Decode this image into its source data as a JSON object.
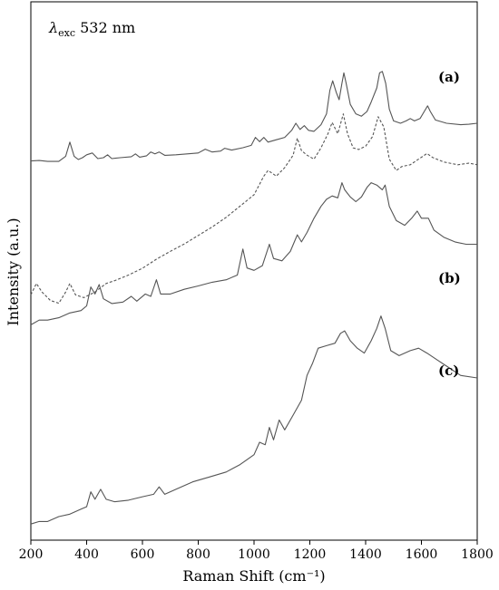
{
  "chart_data": {
    "type": "line",
    "title": "",
    "annotation": {
      "symbol": "λ",
      "subscript": "exc",
      "text": " 532 nm"
    },
    "xlabel": "Raman Shift (cm⁻¹)",
    "ylabel": "Intensity (a.u.)",
    "xlim": [
      200,
      1800
    ],
    "x_ticks": [
      200,
      400,
      600,
      800,
      1000,
      1200,
      1400,
      1600,
      1800
    ],
    "y_ticks_shown": false,
    "grid": false,
    "legend": "none",
    "curve_labels": [
      {
        "label": "(a)",
        "attach_x": 1640,
        "attach_offset": 0.7
      },
      {
        "label": "(b)",
        "attach_x": 1640,
        "attach_offset": 0.62
      },
      {
        "label": "(c)",
        "attach_x": 1640,
        "attach_offset": 0.7
      }
    ],
    "series": [
      {
        "style": "solid",
        "baseline": 0.7,
        "scale": 0.0875,
        "points": [
          [
            200,
            0.05
          ],
          [
            230,
            0.06
          ],
          [
            260,
            0.04
          ],
          [
            300,
            0.04
          ],
          [
            325,
            0.15
          ],
          [
            340,
            0.45
          ],
          [
            355,
            0.15
          ],
          [
            370,
            0.08
          ],
          [
            385,
            0.12
          ],
          [
            400,
            0.18
          ],
          [
            420,
            0.22
          ],
          [
            440,
            0.1
          ],
          [
            460,
            0.12
          ],
          [
            475,
            0.18
          ],
          [
            490,
            0.1
          ],
          [
            520,
            0.12
          ],
          [
            560,
            0.14
          ],
          [
            575,
            0.2
          ],
          [
            590,
            0.13
          ],
          [
            615,
            0.16
          ],
          [
            630,
            0.24
          ],
          [
            645,
            0.2
          ],
          [
            660,
            0.24
          ],
          [
            680,
            0.17
          ],
          [
            720,
            0.18
          ],
          [
            760,
            0.2
          ],
          [
            800,
            0.22
          ],
          [
            825,
            0.3
          ],
          [
            850,
            0.24
          ],
          [
            880,
            0.26
          ],
          [
            895,
            0.32
          ],
          [
            920,
            0.28
          ],
          [
            960,
            0.33
          ],
          [
            990,
            0.38
          ],
          [
            1005,
            0.55
          ],
          [
            1020,
            0.46
          ],
          [
            1035,
            0.55
          ],
          [
            1050,
            0.45
          ],
          [
            1080,
            0.5
          ],
          [
            1110,
            0.55
          ],
          [
            1135,
            0.7
          ],
          [
            1150,
            0.85
          ],
          [
            1165,
            0.72
          ],
          [
            1180,
            0.8
          ],
          [
            1195,
            0.7
          ],
          [
            1215,
            0.68
          ],
          [
            1240,
            0.82
          ],
          [
            1260,
            1.05
          ],
          [
            1272,
            1.55
          ],
          [
            1282,
            1.75
          ],
          [
            1295,
            1.5
          ],
          [
            1305,
            1.35
          ],
          [
            1315,
            1.7
          ],
          [
            1322,
            1.92
          ],
          [
            1330,
            1.7
          ],
          [
            1345,
            1.25
          ],
          [
            1365,
            1.05
          ],
          [
            1385,
            1.0
          ],
          [
            1405,
            1.1
          ],
          [
            1420,
            1.3
          ],
          [
            1440,
            1.6
          ],
          [
            1450,
            1.92
          ],
          [
            1460,
            1.95
          ],
          [
            1472,
            1.7
          ],
          [
            1485,
            1.15
          ],
          [
            1500,
            0.9
          ],
          [
            1525,
            0.85
          ],
          [
            1545,
            0.9
          ],
          [
            1560,
            0.95
          ],
          [
            1575,
            0.9
          ],
          [
            1595,
            0.95
          ],
          [
            1612,
            1.12
          ],
          [
            1622,
            1.22
          ],
          [
            1632,
            1.1
          ],
          [
            1650,
            0.92
          ],
          [
            1690,
            0.85
          ],
          [
            1740,
            0.82
          ],
          [
            1770,
            0.83
          ],
          [
            1800,
            0.85
          ]
        ]
      },
      {
        "style": "dashed",
        "baseline": 0.44,
        "scale": 0.105,
        "points": [
          [
            200,
            0.15
          ],
          [
            220,
            0.35
          ],
          [
            240,
            0.2
          ],
          [
            270,
            0.05
          ],
          [
            300,
            0.0
          ],
          [
            325,
            0.2
          ],
          [
            340,
            0.35
          ],
          [
            360,
            0.15
          ],
          [
            390,
            0.1
          ],
          [
            430,
            0.2
          ],
          [
            470,
            0.35
          ],
          [
            500,
            0.4
          ],
          [
            550,
            0.5
          ],
          [
            600,
            0.62
          ],
          [
            650,
            0.78
          ],
          [
            700,
            0.92
          ],
          [
            750,
            1.05
          ],
          [
            800,
            1.2
          ],
          [
            850,
            1.35
          ],
          [
            900,
            1.52
          ],
          [
            950,
            1.72
          ],
          [
            1000,
            1.92
          ],
          [
            1035,
            2.25
          ],
          [
            1050,
            2.35
          ],
          [
            1080,
            2.25
          ],
          [
            1110,
            2.4
          ],
          [
            1140,
            2.62
          ],
          [
            1155,
            2.92
          ],
          [
            1170,
            2.7
          ],
          [
            1190,
            2.62
          ],
          [
            1215,
            2.55
          ],
          [
            1240,
            2.75
          ],
          [
            1265,
            3.0
          ],
          [
            1280,
            3.2
          ],
          [
            1300,
            3.0
          ],
          [
            1320,
            3.35
          ],
          [
            1335,
            3.0
          ],
          [
            1355,
            2.75
          ],
          [
            1375,
            2.72
          ],
          [
            1400,
            2.78
          ],
          [
            1425,
            2.95
          ],
          [
            1445,
            3.3
          ],
          [
            1465,
            3.12
          ],
          [
            1485,
            2.55
          ],
          [
            1510,
            2.35
          ],
          [
            1530,
            2.42
          ],
          [
            1560,
            2.45
          ],
          [
            1590,
            2.55
          ],
          [
            1620,
            2.65
          ],
          [
            1640,
            2.58
          ],
          [
            1680,
            2.5
          ],
          [
            1730,
            2.45
          ],
          [
            1770,
            2.48
          ],
          [
            1800,
            2.45
          ]
        ]
      },
      {
        "style": "solid",
        "baseline": 0.4,
        "scale": 0.088,
        "points": [
          [
            200,
            0.0
          ],
          [
            230,
            0.1
          ],
          [
            260,
            0.1
          ],
          [
            300,
            0.15
          ],
          [
            340,
            0.25
          ],
          [
            380,
            0.3
          ],
          [
            400,
            0.4
          ],
          [
            415,
            0.8
          ],
          [
            430,
            0.65
          ],
          [
            445,
            0.85
          ],
          [
            460,
            0.55
          ],
          [
            490,
            0.45
          ],
          [
            530,
            0.48
          ],
          [
            560,
            0.6
          ],
          [
            580,
            0.5
          ],
          [
            610,
            0.65
          ],
          [
            630,
            0.6
          ],
          [
            650,
            0.95
          ],
          [
            665,
            0.65
          ],
          [
            700,
            0.65
          ],
          [
            750,
            0.75
          ],
          [
            800,
            0.82
          ],
          [
            850,
            0.9
          ],
          [
            900,
            0.95
          ],
          [
            940,
            1.05
          ],
          [
            960,
            1.6
          ],
          [
            975,
            1.2
          ],
          [
            1000,
            1.15
          ],
          [
            1030,
            1.25
          ],
          [
            1055,
            1.7
          ],
          [
            1070,
            1.4
          ],
          [
            1100,
            1.35
          ],
          [
            1130,
            1.55
          ],
          [
            1155,
            1.9
          ],
          [
            1170,
            1.75
          ],
          [
            1190,
            1.95
          ],
          [
            1215,
            2.25
          ],
          [
            1240,
            2.5
          ],
          [
            1260,
            2.65
          ],
          [
            1280,
            2.72
          ],
          [
            1300,
            2.68
          ],
          [
            1315,
            3.0
          ],
          [
            1325,
            2.85
          ],
          [
            1345,
            2.7
          ],
          [
            1365,
            2.6
          ],
          [
            1385,
            2.7
          ],
          [
            1405,
            2.9
          ],
          [
            1420,
            3.0
          ],
          [
            1440,
            2.95
          ],
          [
            1460,
            2.85
          ],
          [
            1470,
            2.95
          ],
          [
            1485,
            2.5
          ],
          [
            1510,
            2.2
          ],
          [
            1540,
            2.1
          ],
          [
            1565,
            2.25
          ],
          [
            1585,
            2.4
          ],
          [
            1600,
            2.25
          ],
          [
            1625,
            2.25
          ],
          [
            1645,
            2.0
          ],
          [
            1680,
            1.85
          ],
          [
            1720,
            1.75
          ],
          [
            1760,
            1.7
          ],
          [
            1800,
            1.7
          ]
        ]
      },
      {
        "style": "solid",
        "baseline": 0.03,
        "scale": 0.092,
        "points": [
          [
            200,
            0.0
          ],
          [
            230,
            0.05
          ],
          [
            260,
            0.05
          ],
          [
            300,
            0.15
          ],
          [
            340,
            0.2
          ],
          [
            380,
            0.3
          ],
          [
            400,
            0.35
          ],
          [
            415,
            0.65
          ],
          [
            430,
            0.5
          ],
          [
            450,
            0.7
          ],
          [
            470,
            0.5
          ],
          [
            500,
            0.45
          ],
          [
            550,
            0.48
          ],
          [
            600,
            0.55
          ],
          [
            640,
            0.6
          ],
          [
            660,
            0.75
          ],
          [
            680,
            0.6
          ],
          [
            720,
            0.7
          ],
          [
            780,
            0.85
          ],
          [
            840,
            0.95
          ],
          [
            900,
            1.05
          ],
          [
            950,
            1.2
          ],
          [
            1000,
            1.4
          ],
          [
            1020,
            1.65
          ],
          [
            1040,
            1.6
          ],
          [
            1055,
            1.95
          ],
          [
            1070,
            1.7
          ],
          [
            1090,
            2.1
          ],
          [
            1110,
            1.9
          ],
          [
            1140,
            2.2
          ],
          [
            1170,
            2.5
          ],
          [
            1190,
            3.0
          ],
          [
            1210,
            3.25
          ],
          [
            1230,
            3.55
          ],
          [
            1260,
            3.6
          ],
          [
            1290,
            3.65
          ],
          [
            1310,
            3.85
          ],
          [
            1325,
            3.9
          ],
          [
            1345,
            3.7
          ],
          [
            1370,
            3.55
          ],
          [
            1395,
            3.45
          ],
          [
            1420,
            3.7
          ],
          [
            1440,
            3.95
          ],
          [
            1455,
            4.2
          ],
          [
            1470,
            3.95
          ],
          [
            1490,
            3.5
          ],
          [
            1520,
            3.4
          ],
          [
            1560,
            3.5
          ],
          [
            1590,
            3.55
          ],
          [
            1620,
            3.45
          ],
          [
            1660,
            3.3
          ],
          [
            1700,
            3.15
          ],
          [
            1740,
            3.0
          ],
          [
            1800,
            2.95
          ]
        ]
      }
    ]
  }
}
